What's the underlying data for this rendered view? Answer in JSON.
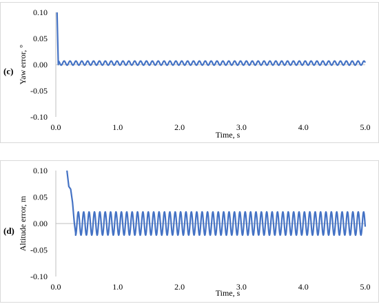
{
  "chart_data": [
    {
      "type": "line",
      "panel_label": "(c)",
      "xlabel": "Time, s",
      "ylabel": "Yaw error, °",
      "xlim": [
        0.0,
        5.0
      ],
      "ylim": [
        -0.1,
        0.1
      ],
      "x_ticks": [
        "0.0",
        "1.0",
        "2.0",
        "3.0",
        "4.0",
        "5.0"
      ],
      "y_ticks": [
        "0.10",
        "0.05",
        "0.00",
        "-0.05",
        "-0.10"
      ],
      "grid": false,
      "color": "#4472C4",
      "series": [
        {
          "transient": [
            [
              0.02,
              0.1
            ],
            [
              0.04,
              0.0
            ]
          ],
          "oscillation": {
            "start": 0.04,
            "end": 5.0,
            "period": 0.095,
            "amplitude": 0.004,
            "offset": 0.003
          }
        }
      ]
    },
    {
      "type": "line",
      "panel_label": "(d)",
      "xlabel": "Time, s",
      "ylabel": "Altitude error, m",
      "xlim": [
        0.0,
        5.0
      ],
      "ylim": [
        -0.1,
        0.1
      ],
      "x_ticks": [
        "0.0",
        "1.0",
        "2.0",
        "3.0",
        "4.0",
        "5.0"
      ],
      "y_ticks": [
        "0.10",
        "0.05",
        "0.00",
        "-0.05",
        "-0.10"
      ],
      "grid": false,
      "color": "#4472C4",
      "series": [
        {
          "transient": [
            [
              0.18,
              0.1
            ],
            [
              0.21,
              0.07
            ],
            [
              0.24,
              0.065
            ],
            [
              0.27,
              0.04
            ],
            [
              0.3,
              0.0
            ],
            [
              0.32,
              -0.018
            ]
          ],
          "oscillation": {
            "start": 0.32,
            "end": 5.0,
            "period": 0.087,
            "amplitude": 0.022,
            "offset": 0.0
          }
        }
      ]
    }
  ]
}
